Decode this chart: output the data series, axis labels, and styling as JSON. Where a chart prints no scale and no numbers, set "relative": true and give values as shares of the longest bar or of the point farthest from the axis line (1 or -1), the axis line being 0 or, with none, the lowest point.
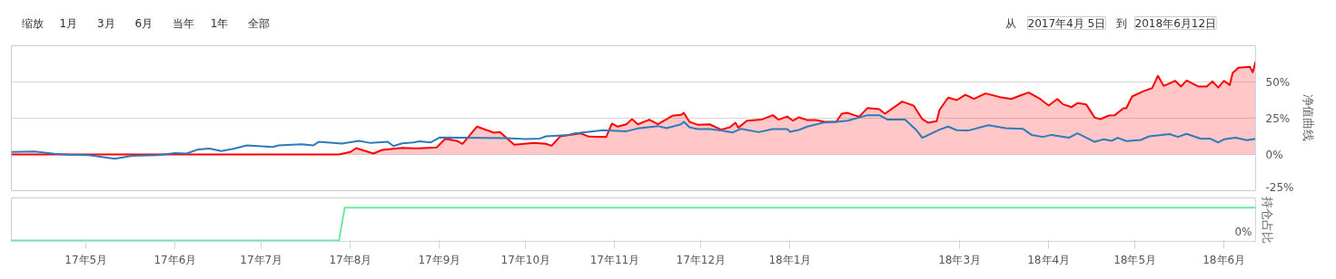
{
  "chart_data": [
    {
      "type": "line",
      "ylabel": "净值曲线",
      "xlim": [
        "2017-04-05",
        "2018-06-12"
      ],
      "ylim": [
        -25,
        75
      ],
      "yticks": [
        {
          "value": -25,
          "label": "-25%"
        },
        {
          "value": 0,
          "label": "0%"
        },
        {
          "value": 25,
          "label": "25%"
        },
        {
          "value": 50,
          "label": "50%"
        }
      ],
      "grid": "y",
      "tick_labels": "y",
      "annotations": [
        "缩放",
        "1月",
        "3月",
        "6月",
        "当年",
        "1年",
        "全部",
        "从",
        "2017年4月 5日",
        "到",
        "2018年6月12日"
      ],
      "series": [
        {
          "type": "area",
          "color": "#ff0000",
          "x": [
            "2017-04-05",
            "2017-07-28",
            "2017-08-01",
            "2017-08-03",
            "2017-08-09",
            "2017-08-12",
            "2017-08-19",
            "2017-08-23",
            "2017-08-25",
            "2017-08-31",
            "2017-09-03",
            "2017-09-07",
            "2017-09-09",
            "2017-09-14",
            "2017-09-20",
            "2017-09-22",
            "2017-09-27",
            "2017-10-04",
            "2017-10-08",
            "2017-10-10",
            "2017-10-13",
            "2017-10-20",
            "2017-10-23",
            "2017-10-29",
            "2017-10-31",
            "2017-11-02",
            "2017-11-05",
            "2017-11-07",
            "2017-11-09",
            "2017-11-13",
            "2017-11-16",
            "2017-11-21",
            "2017-11-24",
            "2017-11-25",
            "2017-11-27",
            "2017-11-30",
            "2017-12-04",
            "2017-12-08",
            "2017-12-11",
            "2017-12-13",
            "2017-12-14",
            "2017-12-17",
            "2017-12-22",
            "2017-12-26",
            "2017-12-28",
            "2017-12-31",
            "2018-01-02",
            "2018-01-04",
            "2018-01-07",
            "2018-01-10",
            "2018-01-13",
            "2018-01-17",
            "2018-01-19",
            "2018-01-21",
            "2018-01-25",
            "2018-01-28",
            "2018-02-01",
            "2018-02-03",
            "2018-02-09",
            "2018-02-13",
            "2018-02-16",
            "2018-02-18",
            "2018-02-21",
            "2018-02-22",
            "2018-02-25",
            "2018-02-28",
            "2018-03-03",
            "2018-03-06",
            "2018-03-10",
            "2018-03-15",
            "2018-03-19",
            "2018-03-22",
            "2018-03-25",
            "2018-03-29",
            "2018-04-01",
            "2018-04-04",
            "2018-04-06",
            "2018-04-09",
            "2018-04-11",
            "2018-04-14",
            "2018-04-17",
            "2018-04-19",
            "2018-04-22",
            "2018-04-24",
            "2018-04-27",
            "2018-04-28",
            "2018-04-30",
            "2018-05-04",
            "2018-05-07",
            "2018-05-09",
            "2018-05-11",
            "2018-05-15",
            "2018-05-17",
            "2018-05-19",
            "2018-05-23",
            "2018-05-26",
            "2018-05-28",
            "2018-05-30",
            "2018-06-01",
            "2018-06-03",
            "2018-06-04",
            "2018-06-06",
            "2018-06-10",
            "2018-06-11",
            "2018-06-12"
          ],
          "values": [
            0,
            0,
            1.7,
            4.4,
            0.6,
            3.1,
            4.6,
            4.2,
            4.2,
            4.8,
            10.8,
            9.4,
            7.3,
            19.2,
            15,
            15.4,
            6.7,
            7.9,
            7.3,
            6,
            12.5,
            14.6,
            12.3,
            12.1,
            21.3,
            19.2,
            20.8,
            24.4,
            20.8,
            24,
            20.8,
            26.7,
            27.3,
            28.7,
            22.5,
            20.4,
            20.8,
            17.1,
            18.7,
            21.9,
            18.5,
            23.3,
            24,
            27.1,
            24,
            26.2,
            23.3,
            25.6,
            23.7,
            23.7,
            22.5,
            22.5,
            28.1,
            28.7,
            26,
            32.1,
            31.2,
            28.1,
            36.5,
            33.7,
            24.4,
            21.9,
            22.9,
            30.8,
            39.2,
            37.5,
            41.2,
            38.3,
            42.1,
            39.6,
            38.3,
            40.6,
            42.7,
            38.3,
            33.7,
            38.3,
            34.6,
            32.7,
            35.4,
            34.6,
            25.4,
            24.4,
            26.9,
            27.1,
            31.9,
            31.9,
            40,
            43.7,
            45.8,
            54.2,
            47.3,
            50.8,
            46.9,
            51,
            46.9,
            46.9,
            50.4,
            46.2,
            50.8,
            47.9,
            56.2,
            59.8,
            60.4,
            56.7,
            64.2
          ]
        },
        {
          "color": "#2f7ab9",
          "x": [
            "2017-04-05",
            "2017-04-13",
            "2017-04-20",
            "2017-04-25",
            "2017-05-02",
            "2017-05-11",
            "2017-05-17",
            "2017-05-26",
            "2017-06-01",
            "2017-06-05",
            "2017-06-09",
            "2017-06-13",
            "2017-06-17",
            "2017-06-21",
            "2017-06-26",
            "2017-07-05",
            "2017-07-07",
            "2017-07-15",
            "2017-07-19",
            "2017-07-21",
            "2017-07-29",
            "2017-08-04",
            "2017-08-08",
            "2017-08-14",
            "2017-08-16",
            "2017-08-19",
            "2017-08-23",
            "2017-08-25",
            "2017-08-29",
            "2017-09-01",
            "2017-09-09",
            "2017-09-24",
            "2017-10-01",
            "2017-10-06",
            "2017-10-08",
            "2017-10-16",
            "2017-10-18",
            "2017-10-28",
            "2017-11-05",
            "2017-11-09",
            "2017-11-16",
            "2017-11-19",
            "2017-11-24",
            "2017-11-25",
            "2017-11-27",
            "2017-11-30",
            "2017-12-04",
            "2017-12-08",
            "2017-12-12",
            "2017-12-15",
            "2017-12-21",
            "2017-12-26",
            "2017-12-31",
            "2018-01-01",
            "2018-01-04",
            "2018-01-07",
            "2018-01-13",
            "2018-01-17",
            "2018-01-21",
            "2018-01-28",
            "2018-02-01",
            "2018-02-04",
            "2018-02-10",
            "2018-02-14",
            "2018-02-16",
            "2018-02-22",
            "2018-02-25",
            "2018-02-28",
            "2018-03-04",
            "2018-03-11",
            "2018-03-17",
            "2018-03-23",
            "2018-03-26",
            "2018-03-30",
            "2018-04-02",
            "2018-04-08",
            "2018-04-11",
            "2018-04-17",
            "2018-04-20",
            "2018-04-23",
            "2018-04-25",
            "2018-04-28",
            "2018-05-03",
            "2018-05-06",
            "2018-05-13",
            "2018-05-16",
            "2018-05-19",
            "2018-05-24",
            "2018-05-27",
            "2018-05-30",
            "2018-06-01",
            "2018-06-05",
            "2018-06-09",
            "2018-06-12"
          ],
          "values": [
            1.7,
            2.1,
            0.4,
            -0.2,
            -0.4,
            -2.9,
            -1,
            -0.4,
            1,
            0.6,
            3.5,
            4,
            2.3,
            3.8,
            6.2,
            5.2,
            6.2,
            7.1,
            6.2,
            8.7,
            7.5,
            9.4,
            7.9,
            8.7,
            5.8,
            7.7,
            8.3,
            9,
            8.3,
            11.7,
            11.5,
            11.2,
            10.6,
            11,
            12.5,
            13.5,
            14.6,
            16.7,
            16,
            17.9,
            19.6,
            18.1,
            20.8,
            22.5,
            18.7,
            17.5,
            17.5,
            16.5,
            15.2,
            17.7,
            15.4,
            17.5,
            17.5,
            15.6,
            16.9,
            19.2,
            22.1,
            22.5,
            23.3,
            27.1,
            27.1,
            24,
            24,
            16.7,
            11.5,
            17.1,
            19.2,
            16.7,
            16.5,
            20.2,
            18.1,
            17.7,
            13.5,
            12.1,
            13.5,
            11.5,
            14.6,
            8.7,
            10.4,
            9.4,
            11.5,
            9.2,
            10,
            12.5,
            14.1,
            12.1,
            14.2,
            10.8,
            11,
            8.3,
            10.4,
            11.5,
            9.8,
            10.8
          ]
        }
      ]
    },
    {
      "type": "line",
      "ylabel": "持仓占比",
      "relative": true,
      "xlim": [
        "2017-04-05",
        "2018-06-12"
      ],
      "xticks": [
        {
          "value": "2017-05-01",
          "label": "17年5月"
        },
        {
          "value": "2017-06-01",
          "label": "17年6月"
        },
        {
          "value": "2017-07-01",
          "label": "17年7月"
        },
        {
          "value": "2017-08-01",
          "label": "17年8月"
        },
        {
          "value": "2017-09-01",
          "label": "17年9月"
        },
        {
          "value": "2017-10-01",
          "label": "17年10月"
        },
        {
          "value": "2017-11-01",
          "label": "17年11月"
        },
        {
          "value": "2017-12-01",
          "label": "17年12月"
        },
        {
          "value": "2018-01-01",
          "label": "18年1月"
        },
        {
          "value": "2018-03-01",
          "label": "18年3月"
        },
        {
          "value": "2018-04-01",
          "label": "18年4月"
        },
        {
          "value": "2018-05-01",
          "label": "18年5月"
        },
        {
          "value": "2018-06-01",
          "label": "18年6月"
        }
      ],
      "tick_labels": "x",
      "grid": false,
      "annotations": [
        "0%"
      ],
      "series": [
        {
          "color": "#66ee99",
          "x": [
            "2017-04-05",
            "2017-07-28",
            "2017-07-30",
            "2018-06-12"
          ],
          "values": [
            0,
            0,
            1,
            1
          ]
        }
      ]
    }
  ]
}
